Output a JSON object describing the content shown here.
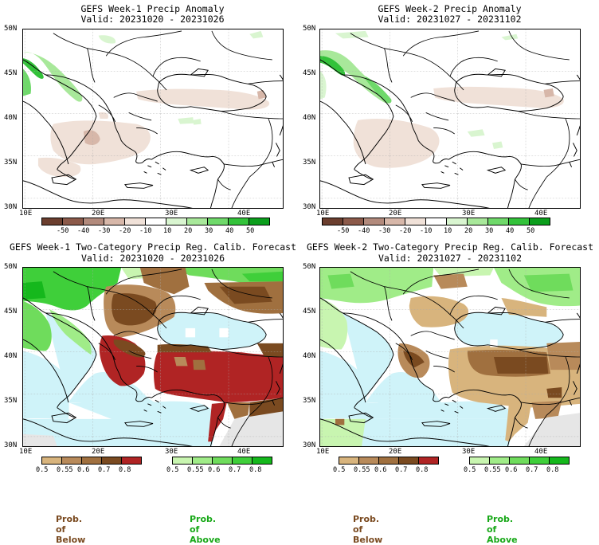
{
  "panels": {
    "p1": {
      "title": "GEFS Week-1 Precip Anomaly",
      "valid": "Valid: 20231020 - 20231026"
    },
    "p2": {
      "title": "GEFS Week-2 Precip Anomaly",
      "valid": "Valid: 20231027 - 20231102"
    },
    "p3": {
      "title": "GEFS Week-1 Two-Category Precip Reg. Calib. Forecast",
      "valid": "Valid: 20231020 - 20231026"
    },
    "p4": {
      "title": "GEFS Week-2 Two-Category Precip Reg. Calib. Forecast",
      "valid": "Valid: 20231027 - 20231102"
    }
  },
  "axes": {
    "lat_labels": [
      "50N",
      "45N",
      "40N",
      "35N",
      "30N"
    ],
    "lon_labels": [
      "10E",
      "20E",
      "30E",
      "40E"
    ]
  },
  "anomaly_scale": {
    "labels": [
      "-50",
      "-40",
      "-30",
      "-20",
      "-10",
      "10",
      "20",
      "30",
      "40",
      "50"
    ],
    "colors": [
      "#6b3e2e",
      "#8c5a4a",
      "#b28a7c",
      "#d7b7a9",
      "#f0e1d8",
      "#ffffff",
      "#d9f5d0",
      "#a8e89a",
      "#6fd96a",
      "#33c23a",
      "#0b9e1c"
    ]
  },
  "below_scale": {
    "labels": [
      "0.5",
      "0.55",
      "0.6",
      "0.7",
      "0.8"
    ],
    "colors": [
      "#d8b47d",
      "#b88a5a",
      "#a0703f",
      "#7a4a20",
      "#b02424"
    ]
  },
  "above_scale": {
    "labels": [
      "0.5",
      "0.55",
      "0.6",
      "0.7",
      "0.8"
    ],
    "colors": [
      "#c8f5b0",
      "#a0ec88",
      "#6fdc5c",
      "#3fcf3a",
      "#15b81c"
    ]
  },
  "legend": {
    "below": "Prob. of Below",
    "above": "Prob. of Above",
    "below_color": "#7a4a20",
    "above_color": "#18a818"
  }
}
